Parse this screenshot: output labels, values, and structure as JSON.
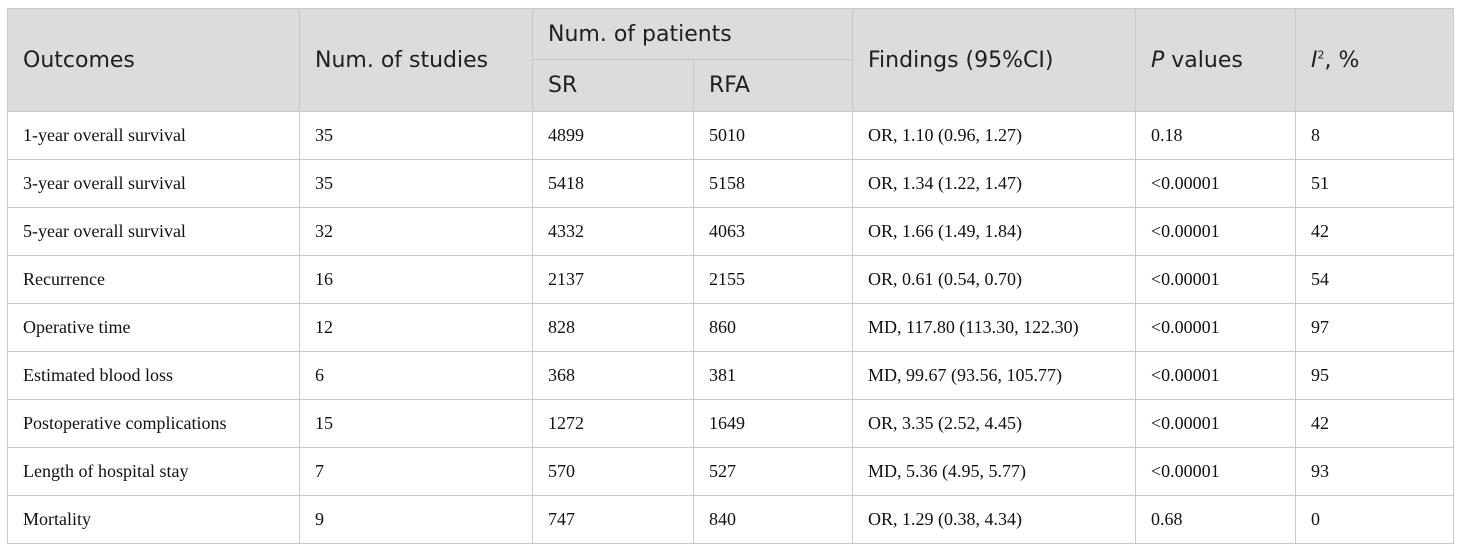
{
  "table": {
    "headers": {
      "outcomes": "Outcomes",
      "num_studies": "Num. of studies",
      "num_patients": "Num. of patients",
      "sr": "SR",
      "rfa": "RFA",
      "findings": "Findings (95%CI)",
      "p_italic": "P",
      "p_rest": " values",
      "i2_letter": "I",
      "i2_sup": "2",
      "i2_rest": ", %"
    },
    "rows": [
      {
        "outcome": "1-year overall survival",
        "studies": "35",
        "sr": "4899",
        "rfa": "5010",
        "findings": "OR, 1.10 (0.96, 1.27)",
        "p": "0.18",
        "i2": "8"
      },
      {
        "outcome": "3-year overall survival",
        "studies": "35",
        "sr": "5418",
        "rfa": "5158",
        "findings": "OR, 1.34 (1.22, 1.47)",
        "p": "<0.00001",
        "i2": "51"
      },
      {
        "outcome": "5-year overall survival",
        "studies": "32",
        "sr": "4332",
        "rfa": "4063",
        "findings": "OR, 1.66 (1.49, 1.84)",
        "p": "<0.00001",
        "i2": "42"
      },
      {
        "outcome": "Recurrence",
        "studies": "16",
        "sr": "2137",
        "rfa": "2155",
        "findings": "OR, 0.61 (0.54, 0.70)",
        "p": "<0.00001",
        "i2": "54"
      },
      {
        "outcome": "Operative time",
        "studies": "12",
        "sr": "828",
        "rfa": "860",
        "findings": "MD, 117.80 (113.30, 122.30)",
        "p": "<0.00001",
        "i2": "97"
      },
      {
        "outcome": "Estimated blood loss",
        "studies": "6",
        "sr": "368",
        "rfa": "381",
        "findings": "MD, 99.67 (93.56, 105.77)",
        "p": "<0.00001",
        "i2": "95"
      },
      {
        "outcome": "Postoperative complications",
        "studies": "15",
        "sr": "1272",
        "rfa": "1649",
        "findings": "OR, 3.35 (2.52, 4.45)",
        "p": "<0.00001",
        "i2": "42"
      },
      {
        "outcome": "Length of hospital stay",
        "studies": "7",
        "sr": "570",
        "rfa": "527",
        "findings": "MD, 5.36 (4.95, 5.77)",
        "p": "<0.00001",
        "i2": "93"
      },
      {
        "outcome": "Mortality",
        "studies": "9",
        "sr": "747",
        "rfa": "840",
        "findings": "OR, 1.29 (0.38, 4.34)",
        "p": "0.68",
        "i2": "0"
      }
    ]
  }
}
